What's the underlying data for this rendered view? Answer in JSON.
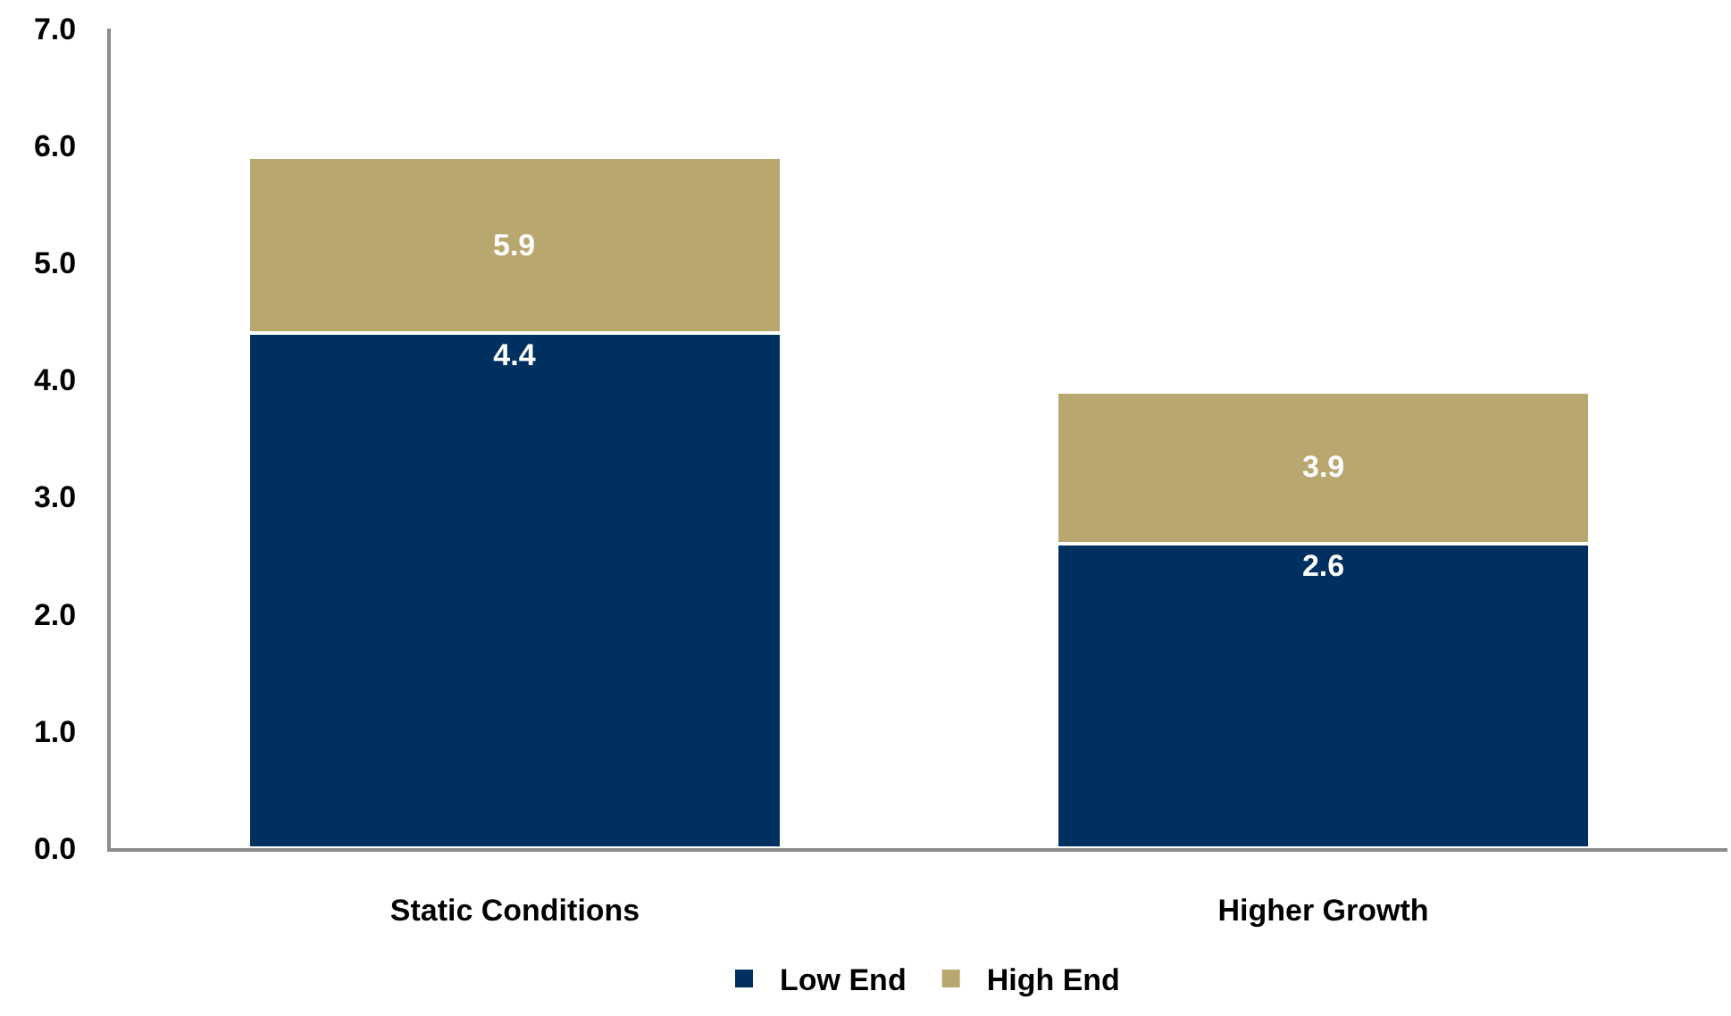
{
  "chart_data": {
    "type": "bar",
    "categories": [
      "Static Conditions",
      "Higher Growth"
    ],
    "series": [
      {
        "name": "Low End",
        "color": "#00305f",
        "values": [
          4.4,
          2.6
        ],
        "value_labels": [
          "4.4",
          "2.6"
        ]
      },
      {
        "name": "High End",
        "color": "#b8a76f",
        "values": [
          1.5,
          1.3
        ]
      }
    ],
    "stacked": true,
    "totals": [
      "5.9",
      "3.9"
    ],
    "ylim": [
      0,
      7
    ],
    "yticks": [
      {
        "value": 0,
        "label": "0.0"
      },
      {
        "value": 1,
        "label": "1.0"
      },
      {
        "value": 2,
        "label": "2.0"
      },
      {
        "value": 3,
        "label": "3.0"
      },
      {
        "value": 4,
        "label": "4.0"
      },
      {
        "value": 5,
        "label": "5.0"
      },
      {
        "value": 6,
        "label": "6.0"
      },
      {
        "value": 7,
        "label": "7.0"
      }
    ],
    "legend": "bottom"
  }
}
